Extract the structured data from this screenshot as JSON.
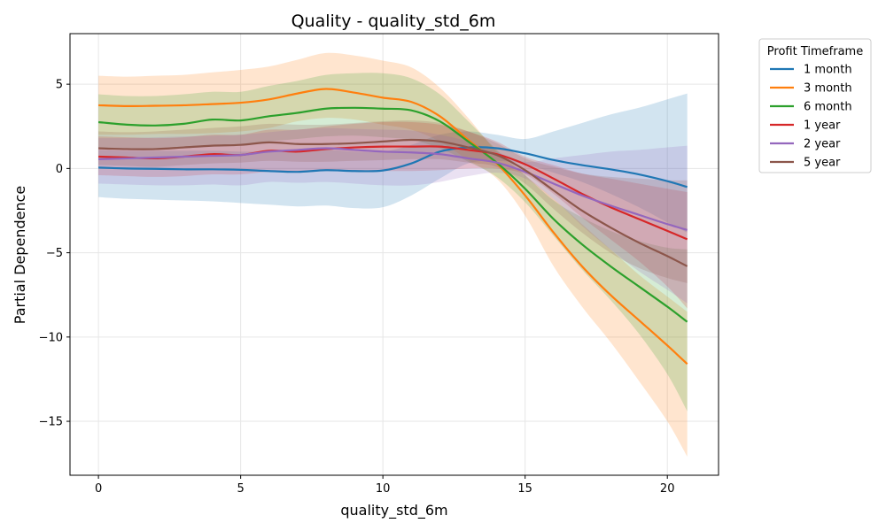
{
  "chart_data": {
    "type": "line",
    "title": "Quality - quality_std_6m",
    "xlabel": "quality_std_6m",
    "ylabel": "Partial Dependence",
    "xlim": [
      -1,
      21.8
    ],
    "ylim": [
      -18.2,
      8
    ],
    "xticks": [
      0,
      5,
      10,
      15,
      20
    ],
    "xtick_labels": [
      "0",
      "5",
      "10",
      "15",
      "20"
    ],
    "yticks": [
      5,
      0,
      -5,
      -10,
      -15
    ],
    "ytick_labels": [
      "5",
      "0",
      "−5",
      "−10",
      "−15"
    ],
    "grid": true,
    "legend": {
      "title": "Profit Timeframe",
      "placement": "outside-upper-right"
    },
    "x": [
      0,
      1,
      2,
      3,
      4,
      5,
      6,
      7,
      8,
      9,
      10,
      11,
      12,
      13,
      14,
      15,
      16,
      17,
      18,
      19,
      20,
      20.7
    ],
    "series": [
      {
        "name": "1 month",
        "color": "#1f77b4",
        "values": [
          0.05,
          0.0,
          -0.02,
          -0.05,
          -0.05,
          -0.08,
          -0.15,
          -0.2,
          -0.1,
          -0.15,
          -0.12,
          0.3,
          1.0,
          1.25,
          1.2,
          0.9,
          0.5,
          0.2,
          -0.05,
          -0.35,
          -0.75,
          -1.1
        ],
        "lower": [
          -1.7,
          -1.8,
          -1.85,
          -1.9,
          -1.95,
          -2.05,
          -2.15,
          -2.25,
          -2.2,
          -2.35,
          -2.3,
          -1.6,
          -0.6,
          0.3,
          0.45,
          0.25,
          -0.25,
          -0.8,
          -1.5,
          -2.3,
          -3.2,
          -3.8
        ],
        "upper": [
          1.1,
          1.05,
          1.05,
          1.05,
          1.05,
          1.0,
          1.0,
          1.0,
          1.1,
          1.0,
          1.0,
          1.4,
          2.0,
          2.2,
          2.0,
          1.75,
          2.2,
          2.7,
          3.2,
          3.6,
          4.1,
          4.45
        ]
      },
      {
        "name": "3 month",
        "color": "#ff7f0e",
        "values": [
          3.75,
          3.7,
          3.72,
          3.75,
          3.82,
          3.9,
          4.1,
          4.45,
          4.72,
          4.5,
          4.2,
          3.95,
          3.1,
          1.7,
          0.3,
          -1.6,
          -3.8,
          -5.8,
          -7.5,
          -9.0,
          -10.5,
          -11.6
        ],
        "lower": [
          2.0,
          2.0,
          2.05,
          2.05,
          2.1,
          2.2,
          2.4,
          2.8,
          3.0,
          2.9,
          2.6,
          2.3,
          1.6,
          0.5,
          -0.6,
          -2.8,
          -5.8,
          -8.2,
          -10.3,
          -12.6,
          -15.0,
          -17.1
        ],
        "upper": [
          5.5,
          5.45,
          5.5,
          5.55,
          5.7,
          5.85,
          6.05,
          6.45,
          6.85,
          6.7,
          6.4,
          6.0,
          4.8,
          3.0,
          1.0,
          -0.4,
          -1.8,
          -3.3,
          -4.8,
          -6.3,
          -7.6,
          -8.5
        ]
      },
      {
        "name": "6 month",
        "color": "#2ca02c",
        "values": [
          2.75,
          2.6,
          2.55,
          2.65,
          2.9,
          2.85,
          3.1,
          3.3,
          3.55,
          3.6,
          3.55,
          3.45,
          2.8,
          1.6,
          0.35,
          -1.2,
          -3.0,
          -4.5,
          -5.8,
          -7.0,
          -8.2,
          -9.1
        ],
        "lower": [
          1.2,
          1.15,
          1.1,
          1.2,
          1.4,
          1.4,
          1.6,
          1.75,
          1.9,
          1.95,
          1.85,
          1.7,
          1.2,
          0.4,
          -0.5,
          -2.0,
          -4.0,
          -6.0,
          -7.8,
          -9.8,
          -12.2,
          -14.4
        ],
        "upper": [
          4.4,
          4.3,
          4.3,
          4.4,
          4.55,
          4.55,
          4.9,
          5.2,
          5.55,
          5.65,
          5.65,
          5.35,
          4.4,
          2.8,
          1.1,
          -0.4,
          -1.9,
          -2.9,
          -3.7,
          -4.3,
          -4.7,
          -4.8
        ]
      },
      {
        "name": "1 year",
        "color": "#d62728",
        "values": [
          0.7,
          0.65,
          0.6,
          0.7,
          0.85,
          0.8,
          1.05,
          1.0,
          1.15,
          1.25,
          1.3,
          1.3,
          1.3,
          1.1,
          0.85,
          0.25,
          -0.6,
          -1.5,
          -2.3,
          -3.0,
          -3.7,
          -4.2
        ],
        "lower": [
          -0.4,
          -0.45,
          -0.5,
          -0.45,
          -0.35,
          -0.35,
          -0.2,
          -0.25,
          -0.15,
          -0.15,
          -0.15,
          -0.15,
          -0.1,
          0.0,
          0.0,
          -0.35,
          -1.5,
          -2.9,
          -4.2,
          -5.5,
          -7.0,
          -8.3
        ],
        "upper": [
          1.9,
          1.85,
          1.8,
          1.85,
          2.0,
          2.0,
          2.3,
          2.3,
          2.5,
          2.65,
          2.75,
          2.75,
          2.6,
          2.2,
          1.6,
          0.7,
          0.2,
          -0.3,
          -0.6,
          -0.9,
          -1.2,
          -1.4
        ]
      },
      {
        "name": "2 year",
        "color": "#9467bd",
        "values": [
          0.55,
          0.6,
          0.65,
          0.7,
          0.75,
          0.8,
          1.0,
          1.1,
          1.2,
          1.1,
          1.0,
          0.95,
          0.85,
          0.6,
          0.35,
          -0.2,
          -0.9,
          -1.6,
          -2.2,
          -2.75,
          -3.3,
          -3.65
        ],
        "lower": [
          -0.9,
          -0.95,
          -1.0,
          -1.0,
          -0.95,
          -1.0,
          -0.8,
          -0.85,
          -0.8,
          -0.9,
          -1.0,
          -1.0,
          -0.8,
          -0.45,
          -0.25,
          -0.6,
          -1.8,
          -3.4,
          -4.8,
          -6.1,
          -7.2,
          -8.0
        ],
        "upper": [
          1.8,
          1.8,
          1.85,
          1.9,
          1.95,
          2.0,
          2.15,
          2.3,
          2.4,
          2.35,
          2.3,
          2.25,
          2.0,
          1.6,
          1.0,
          0.4,
          0.6,
          0.8,
          1.0,
          1.1,
          1.25,
          1.35
        ]
      },
      {
        "name": "5 year",
        "color": "#8c564b",
        "values": [
          1.2,
          1.15,
          1.15,
          1.25,
          1.35,
          1.4,
          1.55,
          1.45,
          1.45,
          1.5,
          1.6,
          1.7,
          1.6,
          1.25,
          0.8,
          -0.1,
          -1.3,
          -2.5,
          -3.5,
          -4.4,
          -5.2,
          -5.8
        ],
        "lower": [
          0.2,
          0.15,
          0.1,
          0.2,
          0.3,
          0.35,
          0.45,
          0.4,
          0.4,
          0.45,
          0.5,
          0.55,
          0.55,
          0.35,
          0.1,
          -0.9,
          -2.4,
          -3.8,
          -5.0,
          -5.9,
          -6.5,
          -6.8
        ],
        "upper": [
          2.2,
          2.15,
          2.2,
          2.3,
          2.4,
          2.5,
          2.65,
          2.6,
          2.6,
          2.7,
          2.8,
          2.85,
          2.7,
          2.2,
          1.5,
          0.6,
          0.1,
          -0.3,
          -0.5,
          -0.6,
          -0.7,
          -0.7
        ]
      }
    ]
  }
}
